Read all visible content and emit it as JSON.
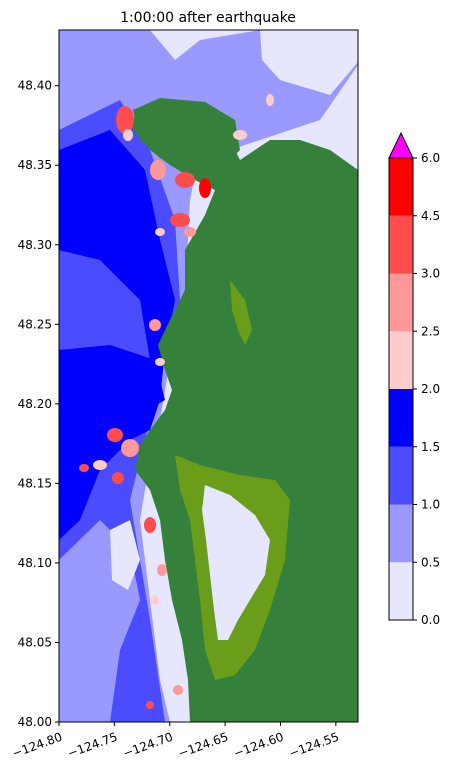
{
  "chart_data": [
    {
      "type": "heatmap",
      "title": "1:00:00 after earthquake",
      "xlabel": "",
      "ylabel": "",
      "xlim": [
        -124.8,
        -124.53
      ],
      "ylim": [
        48.0,
        48.435
      ],
      "xticks": [
        -124.8,
        -124.75,
        -124.7,
        -124.65,
        -124.6,
        -124.55
      ],
      "xtick_labels": [
        "−124.80",
        "−124.75",
        "−124.70",
        "−124.65",
        "−124.60",
        "−124.55"
      ],
      "yticks": [
        48.0,
        48.05,
        48.1,
        48.15,
        48.2,
        48.25,
        48.3,
        48.35,
        48.4
      ],
      "ytick_labels": [
        "48.00",
        "48.05",
        "48.10",
        "48.15",
        "48.20",
        "48.25",
        "48.30",
        "48.35",
        "48.40"
      ],
      "land_color": "#35803a",
      "inland_water_color": "#6a9d1a"
    },
    {
      "type": "colorbar",
      "levels": [
        0.0,
        0.5,
        1.0,
        1.5,
        2.0,
        2.5,
        3.0,
        4.5,
        6.0
      ],
      "level_labels": [
        "0.0",
        "0.5",
        "1.0",
        "1.5",
        "2.0",
        "2.5",
        "3.0",
        "4.5",
        "6.0"
      ],
      "colors": [
        "#e6e6ff",
        "#9999ff",
        "#4c4cff",
        "#0000ff",
        "#ffcccc",
        "#ff9999",
        "#ff4c4c",
        "#ff0000"
      ],
      "extend_color": "#ff00ff",
      "extend": "max"
    }
  ]
}
